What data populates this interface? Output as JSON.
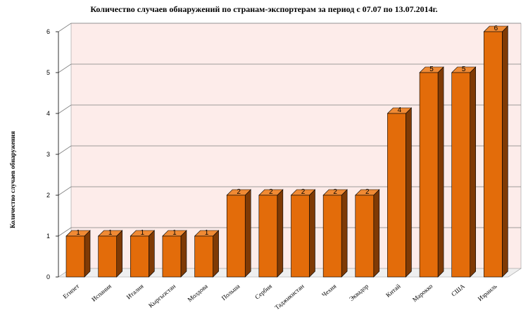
{
  "chart_data": {
    "type": "bar",
    "title": "Количество случаев обнаружений по странам-экспортерам за период с 07.07 по 13.07.2014г.",
    "ylabel": "Количество случаев обнаружения",
    "xlabel": "",
    "categories": [
      "Египет",
      "Испания",
      "Италия",
      "Кыргызстан",
      "Молдова",
      "Польша",
      "Сербия",
      "Таджикистан",
      "Чехия",
      "Эквадор",
      "Китай",
      "Марокко",
      "США",
      "Израиль"
    ],
    "values": [
      1,
      1,
      1,
      1,
      1,
      2,
      2,
      2,
      2,
      2,
      4,
      5,
      5,
      6
    ],
    "ylim": [
      0,
      6
    ],
    "yticks": [
      0,
      1,
      2,
      3,
      4,
      5,
      6
    ],
    "grid": true,
    "bar_style": "3d",
    "colors": {
      "bar_front": "#E36C0A",
      "bar_side": "#7F3A05",
      "bar_top": "#F08A34",
      "back_wall": "#FDECEA",
      "floor": "#EFEFEF",
      "grid": "#808080"
    }
  }
}
